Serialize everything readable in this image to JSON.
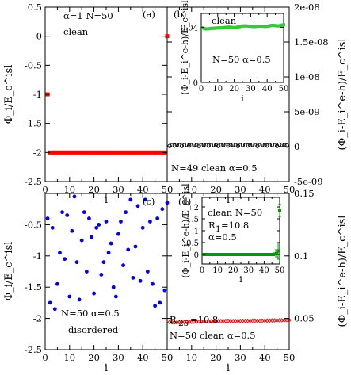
{
  "chart_data": [
    {
      "panel": "a",
      "type": "scatter",
      "label": "(a)",
      "annotations": [
        "α=1   N=50",
        "clean"
      ],
      "xlabel": "i",
      "ylabel": "Φ_i/E_c^isl",
      "xlim": [
        0,
        50
      ],
      "ylim": [
        -2.5,
        0.5
      ],
      "xticks": [
        0,
        10,
        20,
        30,
        40,
        50
      ],
      "yticks": [
        -2.5,
        -2,
        -1.5,
        -1,
        -0.5,
        0,
        0.5
      ],
      "marker": "square",
      "color": "#ff0000",
      "x": [
        1,
        2,
        3,
        4,
        5,
        6,
        7,
        8,
        9,
        10,
        11,
        12,
        13,
        14,
        15,
        16,
        17,
        18,
        19,
        20,
        21,
        22,
        23,
        24,
        25,
        26,
        27,
        28,
        29,
        30,
        31,
        32,
        33,
        34,
        35,
        36,
        37,
        38,
        39,
        40,
        41,
        42,
        43,
        44,
        45,
        46,
        47,
        48,
        49,
        50
      ],
      "y": [
        -1,
        -2,
        -2,
        -2,
        -2,
        -2,
        -2,
        -2,
        -2,
        -2,
        -2,
        -2,
        -2,
        -2,
        -2,
        -2,
        -2,
        -2,
        -2,
        -2,
        -2,
        -2,
        -2,
        -2,
        -2,
        -2,
        -2,
        -2,
        -2,
        -2,
        -2,
        -2,
        -2,
        -2,
        -2,
        -2,
        -2,
        -2,
        -2,
        -2,
        -2,
        -2,
        -2,
        -2,
        -2,
        -2,
        -2,
        -2,
        -2,
        0
      ]
    },
    {
      "panel": "b",
      "type": "scatter",
      "label": "(b)",
      "annotations": [
        "N=49 clean α=0.5"
      ],
      "xlabel": "i",
      "ylabel": "(Φ_i-E_i^e-h)/E_c^isl",
      "xlim": [
        0,
        50
      ],
      "ylim": [
        -5e-09,
        2e-08
      ],
      "xticks": [
        0,
        10,
        20,
        30,
        40,
        50
      ],
      "yticks": [
        -5e-09,
        0,
        5e-09,
        1e-08,
        1.5e-08,
        2e-08
      ],
      "ytick_labels": [
        "-5e-09",
        "0",
        "5e-09",
        "1e-08",
        "1.5e-08",
        "2e-08"
      ],
      "marker": "open-circle",
      "color": "#000000",
      "x": [
        1,
        2,
        3,
        4,
        5,
        6,
        7,
        8,
        9,
        10,
        11,
        12,
        13,
        14,
        15,
        16,
        17,
        18,
        19,
        20,
        21,
        22,
        23,
        24,
        25,
        26,
        27,
        28,
        29,
        30,
        31,
        32,
        33,
        34,
        35,
        36,
        37,
        38,
        39,
        40,
        41,
        42,
        43,
        44,
        45,
        46,
        47,
        48,
        49
      ],
      "y": [
        1e-10,
        2e-10,
        1.5e-10,
        2.5e-10,
        2e-10,
        1e-10,
        2e-10,
        2.5e-10,
        1.5e-10,
        2e-10,
        2.5e-10,
        2e-10,
        1e-10,
        2e-10,
        2.5e-10,
        2e-10,
        1.5e-10,
        2e-10,
        2.5e-10,
        2e-10,
        1e-10,
        2e-10,
        2.5e-10,
        2e-10,
        1.5e-10,
        2e-10,
        2.5e-10,
        2e-10,
        1e-10,
        2e-10,
        2.5e-10,
        2e-10,
        1.5e-10,
        2e-10,
        2.5e-10,
        2e-10,
        1e-10,
        2e-10,
        2.5e-10,
        2e-10,
        1.5e-10,
        2e-10,
        2.5e-10,
        2e-10,
        1e-10,
        3e-10,
        2.5e-10,
        2e-10,
        1.5e-10
      ]
    },
    {
      "panel": "b-inset",
      "type": "scatter",
      "annotations": [
        "clean",
        "N=50  α=0.5"
      ],
      "xlabel": "i",
      "ylabel": "(Φ_i-E_i^e-h)/E_c^isl",
      "xlim": [
        0,
        50
      ],
      "ylim": [
        0,
        0.05
      ],
      "xticks": [
        0,
        10,
        20,
        30,
        40,
        50
      ],
      "yticks": [
        0,
        0.04
      ],
      "marker": "square",
      "color": "#33cc33",
      "x": [
        1,
        2,
        3,
        4,
        5,
        6,
        7,
        8,
        9,
        10,
        11,
        12,
        13,
        14,
        15,
        16,
        17,
        18,
        19,
        20,
        21,
        22,
        23,
        24,
        25,
        26,
        27,
        28,
        29,
        30,
        31,
        32,
        33,
        34,
        35,
        36,
        37,
        38,
        39,
        40,
        41,
        42,
        43,
        44,
        45,
        46,
        47,
        48,
        49,
        50
      ],
      "y": [
        0.0395,
        0.039,
        0.0388,
        0.0388,
        0.039,
        0.0392,
        0.0392,
        0.0393,
        0.0394,
        0.0395,
        0.0395,
        0.0396,
        0.0397,
        0.0398,
        0.0399,
        0.04,
        0.0401,
        0.04,
        0.0398,
        0.0397,
        0.0398,
        0.0401,
        0.0404,
        0.0407,
        0.0409,
        0.041,
        0.041,
        0.0409,
        0.0408,
        0.0407,
        0.0406,
        0.0406,
        0.0406,
        0.0407,
        0.0408,
        0.0408,
        0.0408,
        0.0407,
        0.0406,
        0.0407,
        0.0409,
        0.0412,
        0.0414,
        0.0414,
        0.0412,
        0.041,
        0.041,
        0.0412,
        0.0416,
        0.0418
      ]
    },
    {
      "panel": "c",
      "type": "scatter",
      "label": "(c)",
      "annotations": [
        "N=50  α=0.5",
        "disordered"
      ],
      "xlabel": "i",
      "ylabel": "Φ_i/E_c^isl",
      "xlim": [
        0,
        50
      ],
      "ylim": [
        -2.5,
        0
      ],
      "xticks": [
        0,
        10,
        20,
        30,
        40,
        50
      ],
      "yticks": [
        -2.5,
        -2,
        -1.5,
        -1,
        -0.5
      ],
      "marker": "filled-circle",
      "color": "#0000ee",
      "x": [
        1,
        2,
        3,
        4,
        5,
        6,
        7,
        8,
        9,
        10,
        11,
        12,
        13,
        14,
        15,
        16,
        17,
        18,
        19,
        20,
        21,
        22,
        23,
        24,
        25,
        26,
        27,
        28,
        29,
        30,
        31,
        32,
        33,
        34,
        35,
        36,
        37,
        38,
        39,
        40,
        41,
        42,
        43,
        44,
        45,
        46,
        47,
        48,
        49,
        50
      ],
      "y": [
        -0.4,
        -1.75,
        -0.55,
        -1.85,
        -1.45,
        -0.95,
        -0.3,
        -1.05,
        -0.35,
        -1.65,
        -0.6,
        -0.05,
        -1.1,
        -1.7,
        -0.75,
        -0.3,
        -1.25,
        -0.4,
        -0.7,
        -1.6,
        -0.55,
        -0.5,
        -1.3,
        -1.1,
        -0.45,
        -0.95,
        -0.8,
        -1.5,
        -1.65,
        -0.65,
        -0.45,
        -1.15,
        -0.3,
        -0.9,
        -0.1,
        -1.35,
        -0.85,
        -0.2,
        -1.4,
        -0.55,
        -0.1,
        -1.25,
        -0.45,
        -1.45,
        -1.8,
        -0.4,
        -1.75,
        -0.25,
        -1.55,
        -0.15
      ]
    },
    {
      "panel": "d",
      "type": "scatter",
      "label": "(d)",
      "annotations": [
        "R",
        "25",
        "=10.8",
        "N=50  clean  α=0.5"
      ],
      "xlabel": "i",
      "ylabel": "(Φ_i-E_i^e-h)/E_c^isl",
      "xlim": [
        0,
        50
      ],
      "ylim": [
        0.025,
        0.15
      ],
      "xticks": [
        0,
        10,
        20,
        30,
        40,
        50
      ],
      "yticks": [
        0.05,
        0.1,
        0.15
      ],
      "marker": "open-diamond",
      "color": "#ff0000",
      "x": [
        1,
        2,
        3,
        4,
        5,
        6,
        7,
        8,
        9,
        10,
        11,
        12,
        13,
        14,
        15,
        16,
        17,
        18,
        19,
        20,
        21,
        22,
        23,
        24,
        25,
        26,
        27,
        28,
        29,
        30,
        31,
        32,
        33,
        34,
        35,
        36,
        37,
        38,
        39,
        40,
        41,
        42,
        43,
        44,
        45,
        46,
        47,
        48,
        49,
        50
      ],
      "y": [
        0.047,
        0.0468,
        0.0467,
        0.0468,
        0.0469,
        0.047,
        0.047,
        0.0471,
        0.0472,
        0.0472,
        0.0473,
        0.0473,
        0.0474,
        0.0474,
        0.0475,
        0.0475,
        0.0476,
        0.0477,
        0.0477,
        0.0478,
        0.0479,
        0.0479,
        0.048,
        0.048,
        0.0481,
        0.048,
        0.0479,
        0.0479,
        0.048,
        0.048,
        0.0481,
        0.048,
        0.0481,
        0.0481,
        0.0482,
        0.0482,
        0.0481,
        0.0481,
        0.0482,
        0.0482,
        0.0483,
        0.0483,
        0.0484,
        0.0484,
        0.0484,
        0.0485,
        0.0485,
        0.0485,
        0.0486,
        0.0486
      ]
    },
    {
      "panel": "d-inset",
      "type": "scatter",
      "annotations": [
        "clean N=50",
        "R",
        "1",
        "=10.8",
        "α=0.5"
      ],
      "xlabel": "i",
      "ylabel": "(Φ_i-E_i^e-h)/E_c^isl",
      "xlim": [
        0,
        50
      ],
      "ylim": [
        -0.4,
        2.4
      ],
      "xticks": [
        0,
        10,
        20,
        30,
        40,
        50
      ],
      "yticks": [
        0,
        0.5,
        1,
        1.5,
        2
      ],
      "marker": "square",
      "color": "#009900",
      "x": [
        1,
        2,
        3,
        4,
        5,
        6,
        7,
        8,
        9,
        10,
        11,
        12,
        13,
        14,
        15,
        16,
        17,
        18,
        19,
        20,
        21,
        22,
        23,
        24,
        25,
        26,
        27,
        28,
        29,
        30,
        31,
        32,
        33,
        34,
        35,
        36,
        37,
        38,
        39,
        40,
        41,
        42,
        43,
        44,
        45,
        46,
        47,
        48,
        49,
        50
      ],
      "y": [
        0,
        0,
        0,
        0,
        0,
        0,
        0,
        0,
        0,
        0,
        0,
        0,
        0,
        0,
        0,
        0,
        0,
        0,
        0,
        0,
        0,
        0,
        0,
        0,
        0,
        0,
        0,
        0,
        0,
        0,
        0,
        0,
        0,
        0,
        0,
        0,
        0,
        0,
        0,
        0,
        0,
        0,
        0,
        0,
        0,
        0,
        0.02,
        0.05,
        0.15,
        1.85
      ],
      "error_bars": [
        {
          "x": 48,
          "lo": -0.1,
          "hi": 0.2
        },
        {
          "x": 49,
          "lo": -0.2,
          "hi": 0.5
        },
        {
          "x": 50,
          "lo": 1.6,
          "hi": 2.1
        }
      ]
    }
  ]
}
